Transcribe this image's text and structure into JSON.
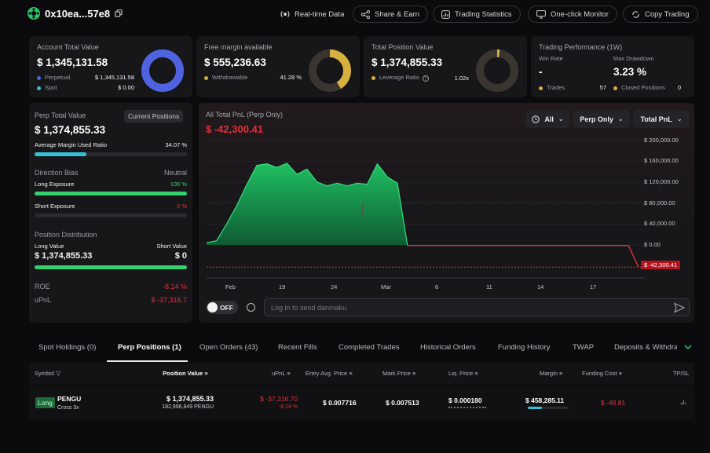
{
  "header": {
    "account": "0x10ea...57e8",
    "buttons": [
      "Real-time Data",
      "Share & Earn",
      "Trading Statistics",
      "One-click Monitor",
      "Copy Trading"
    ]
  },
  "account_total": {
    "title": "Account Total Value",
    "value": "$ 1,345,131.58",
    "perpetual_label": "Perpetual",
    "perpetual_value": "$ 1,345,131.58",
    "spot_label": "Spot",
    "spot_value": "$ 0.00",
    "perp_fraction": 1.0
  },
  "free_margin": {
    "title": "Free margin available",
    "value": "$ 555,236.63",
    "withdrawable_label": "Withdrawable",
    "withdrawable_value": "41.28 %",
    "fraction": 0.4128
  },
  "total_position": {
    "title": "Total Position Value",
    "value": "$ 1,374,855.33",
    "leverage_label": "Leverage Ratio",
    "leverage_value": "1.02x",
    "fraction": 0.02
  },
  "trading_performance": {
    "title": "Trading Performance (1W)",
    "win_rate_label": "Win Rate",
    "win_rate_value": "-",
    "max_drawdown_label": "Max Drawdown",
    "max_drawdown_value": "3.23 %",
    "trades_label": "Trades",
    "trades_value": "57",
    "closed_label": "Closed Positions",
    "closed_value": "0"
  },
  "perp_panel": {
    "title": "Perp Total Value",
    "current_positions": "Current Positions",
    "value": "$ 1,374,855.33",
    "avg_margin_label": "Average Margin Used Ratio",
    "avg_margin_value": "34.07 %",
    "avg_margin_fraction": 0.3407,
    "direction_bias_label": "Direction Bias",
    "direction_bias_value": "Neutral",
    "long_exposure_label": "Long Exposure",
    "long_exposure_value": "100 %",
    "long_fraction": 1.0,
    "short_exposure_label": "Short Exposure",
    "short_exposure_value": "0 %",
    "short_fraction": 0.0,
    "distribution_label": "Position Distribution",
    "long_value_label": "Long Value",
    "long_value": "$ 1,374,855.33",
    "short_value_label": "Short Value",
    "short_value": "$ 0",
    "roe_label": "ROE",
    "roe_value": "-8.14 %",
    "upnl_label": "uPnL",
    "upnl_value": "$ -37,316.7"
  },
  "pnl_chart": {
    "title": "All Total PnL (Perp Only)",
    "current": "$ -42,300.41",
    "filters": [
      "All",
      "Perp Only",
      "Total PnL"
    ],
    "current_tag": "$ -42,300.41",
    "toggle": "OFF",
    "danmaku_placeholder": "Log in to send danmaku"
  },
  "chart_data": {
    "type": "area",
    "title": "All Total PnL (Perp Only)",
    "x_ticks": [
      "Feb",
      "19",
      "24",
      "Mar",
      "6",
      "11",
      "14",
      "17"
    ],
    "y_ticks": [
      "$ 200,000.00",
      "$ 160,000.00",
      "$ 120,000.00",
      "$ 80,000.00",
      "$ 40,000.00",
      "$ 0.00"
    ],
    "ylim": [
      -60000,
      210000
    ],
    "values": [
      4000,
      8000,
      40000,
      75000,
      115000,
      152000,
      155000,
      148000,
      156000,
      135000,
      145000,
      120000,
      113000,
      118000,
      113000,
      118000,
      116000,
      155000,
      130000,
      118000,
      -1000,
      -1000,
      -1000,
      -1000,
      -1000,
      -1000,
      -1000,
      -1000,
      -1000,
      -1000,
      -1000,
      -1000,
      -1000,
      -1000,
      -1000,
      -1000,
      -1000,
      -1000,
      -1000,
      -1000,
      -1000,
      -1000,
      -1000,
      -42300
    ]
  },
  "tabs": [
    "Spot Holdings (0)",
    "Perp Positions (1)",
    "Open Orders (43)",
    "Recent Fills",
    "Completed Trades",
    "Historical Orders",
    "Funding History",
    "TWAP",
    "Deposits & Withdra"
  ],
  "table": {
    "headers": [
      "Symbol",
      "Position Value",
      "uPnL",
      "Entry Avg. Price",
      "Mark Price",
      "Liq. Price",
      "Margin",
      "Funding Cost",
      "TP/SL"
    ],
    "row": {
      "side": "Long",
      "symbol": "PENGU",
      "leverage": "Cross 3x",
      "position_value": "$ 1,374,855.33",
      "position_size": "182,996,849 PENGU",
      "upnl": "$ -37,316.70",
      "upnl_pct": "-8.14 %",
      "entry_price": "$ 0.007716",
      "mark_price": "$ 0.007513",
      "liq_price": "$ 0.000180",
      "margin": "$ 458,285.11",
      "funding_cost": "$ -48.81",
      "tpsl": "-/-"
    }
  },
  "colors": {
    "accent_blue": "#4f63e0",
    "gold": "#d8b040",
    "green": "#35d06e",
    "red": "#e0303a",
    "teal": "#35c0d8"
  }
}
